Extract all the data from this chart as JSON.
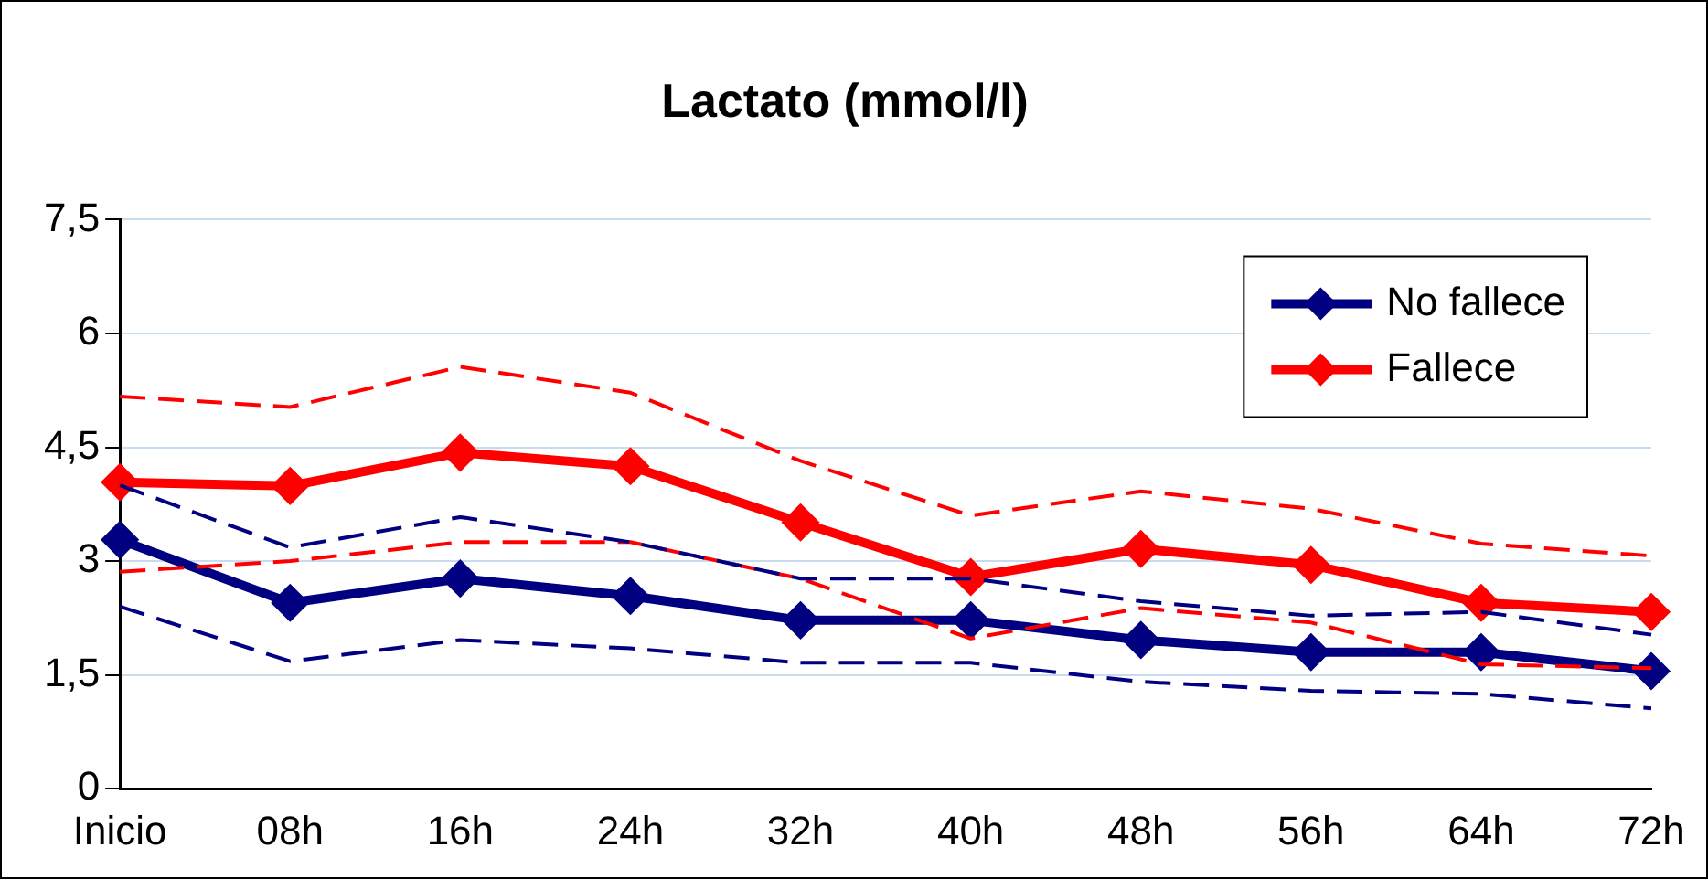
{
  "chart_data": {
    "type": "line",
    "title": "Lactato (mmol/l)",
    "categories": [
      "Inicio",
      "08h",
      "16h",
      "24h",
      "32h",
      "40h",
      "48h",
      "56h",
      "64h",
      "72h"
    ],
    "series": [
      {
        "name": "No fallece",
        "color": "#000080",
        "marker": "diamond",
        "line_style": "solid",
        "values": [
          3.28,
          2.45,
          2.77,
          2.54,
          2.22,
          2.22,
          1.96,
          1.8,
          1.8,
          1.55
        ]
      },
      {
        "name": "Fallece",
        "color": "#ff0000",
        "marker": "diamond",
        "line_style": "solid",
        "values": [
          4.04,
          3.99,
          4.43,
          4.25,
          3.51,
          2.79,
          3.16,
          2.95,
          2.45,
          2.33
        ]
      },
      {
        "color": "#000080",
        "marker": "none",
        "line_style": "dashed",
        "values": [
          4.0,
          3.18,
          3.58,
          3.25,
          2.77,
          2.77,
          2.47,
          2.28,
          2.33,
          2.03
        ]
      },
      {
        "color": "#000080",
        "marker": "none",
        "line_style": "dashed",
        "values": [
          2.4,
          1.68,
          1.96,
          1.85,
          1.66,
          1.66,
          1.41,
          1.29,
          1.25,
          1.06
        ]
      },
      {
        "color": "#ff0000",
        "marker": "none",
        "line_style": "dashed",
        "values": [
          5.17,
          5.03,
          5.56,
          5.22,
          4.32,
          3.6,
          3.92,
          3.69,
          3.23,
          3.07
        ]
      },
      {
        "color": "#ff0000",
        "marker": "none",
        "line_style": "dashed",
        "values": [
          2.86,
          3.0,
          3.25,
          3.25,
          2.77,
          1.98,
          2.38,
          2.19,
          1.64,
          1.59
        ]
      }
    ],
    "ylim": [
      0,
      7.5
    ],
    "yticks": [
      0,
      {
        "value": 1.5,
        "label": "1,5"
      },
      3,
      {
        "value": 4.5,
        "label": "4,5"
      },
      6,
      {
        "value": 7.5,
        "label": "7,5"
      }
    ],
    "grid": "y",
    "legend": "top right"
  }
}
